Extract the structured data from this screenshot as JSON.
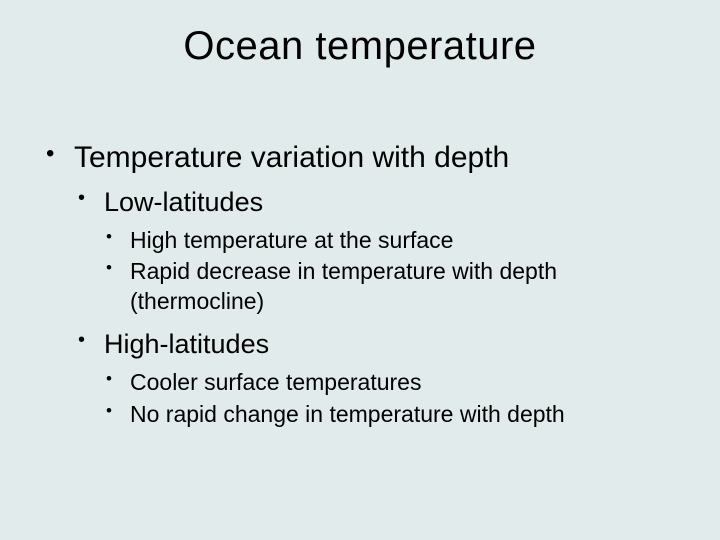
{
  "slide": {
    "background_color": "#e1ebeb",
    "text_color": "#000000",
    "font_family": "Arial",
    "title": "Ocean temperature",
    "title_fontsize": 40,
    "bullets": [
      {
        "text": "Temperature variation with depth",
        "fontsize": 30,
        "children": [
          {
            "text": "Low-latitudes",
            "fontsize": 27,
            "children": [
              {
                "text": "High temperature at the surface",
                "fontsize": 23
              },
              {
                "text": "Rapid decrease in temperature with depth (thermocline)",
                "fontsize": 23
              }
            ]
          },
          {
            "text": "High-latitudes",
            "fontsize": 27,
            "children": [
              {
                "text": "Cooler surface temperatures",
                "fontsize": 23
              },
              {
                "text": "No rapid change in temperature with depth",
                "fontsize": 23
              }
            ]
          }
        ]
      }
    ]
  }
}
